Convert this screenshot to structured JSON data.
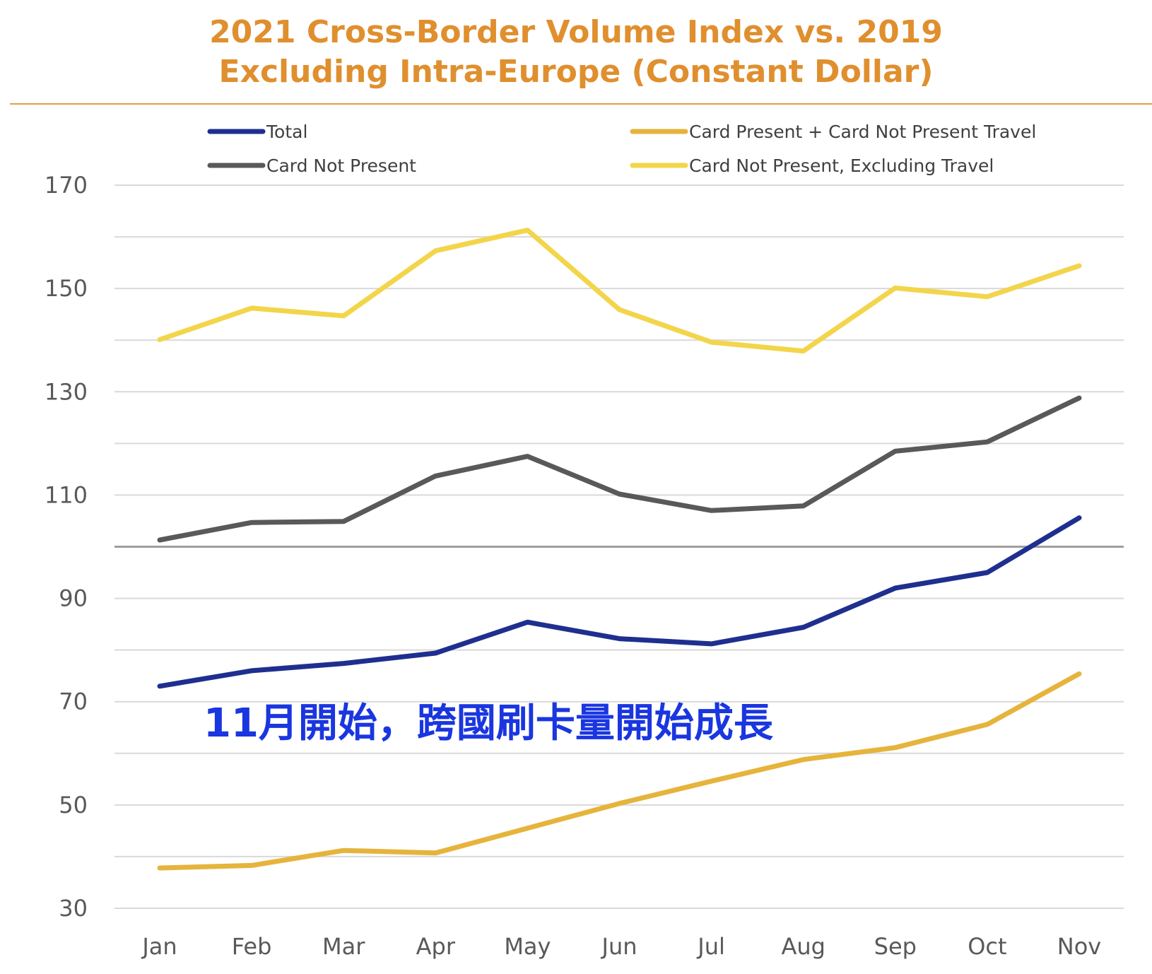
{
  "chart_data": {
    "type": "line",
    "title_lines": [
      "2021 Cross-Border Volume Index vs. 2019",
      "Excluding Intra-Europe (Constant Dollar)"
    ],
    "categories": [
      "Jan",
      "Feb",
      "Mar",
      "Apr",
      "May",
      "Jun",
      "Jul",
      "Aug",
      "Sep",
      "Oct",
      "Nov"
    ],
    "y_ticks": [
      170,
      150,
      130,
      110,
      90,
      70,
      50,
      30
    ],
    "ylim": [
      30,
      170
    ],
    "reference_line": 100,
    "grid": true,
    "legend_position": "top",
    "series": [
      {
        "name": "Total",
        "color": "#1F2F8F",
        "values": [
          73,
          76,
          77.4,
          79.4,
          85.4,
          82.2,
          81.2,
          84.4,
          92,
          95,
          105.6
        ]
      },
      {
        "name": "Card Present + Card Not Present Travel",
        "color": "#E6B43C",
        "values": [
          37.8,
          38.3,
          41.2,
          40.7,
          45.5,
          50.3,
          54.6,
          58.8,
          61.1,
          65.6,
          75.4
        ]
      },
      {
        "name": "Card Not Present",
        "color": "#595959",
        "values": [
          101.3,
          104.7,
          104.9,
          113.7,
          117.5,
          110.2,
          107,
          107.9,
          118.5,
          120.3,
          128.8
        ]
      },
      {
        "name": "Card Not Present, Excluding Travel",
        "color": "#F2D54A",
        "values": [
          140.1,
          146.2,
          144.7,
          157.3,
          161.3,
          145.9,
          139.6,
          137.9,
          150.1,
          148.4,
          154.4
        ]
      }
    ],
    "annotation": "11月開始，跨國刷卡量開始成長"
  }
}
